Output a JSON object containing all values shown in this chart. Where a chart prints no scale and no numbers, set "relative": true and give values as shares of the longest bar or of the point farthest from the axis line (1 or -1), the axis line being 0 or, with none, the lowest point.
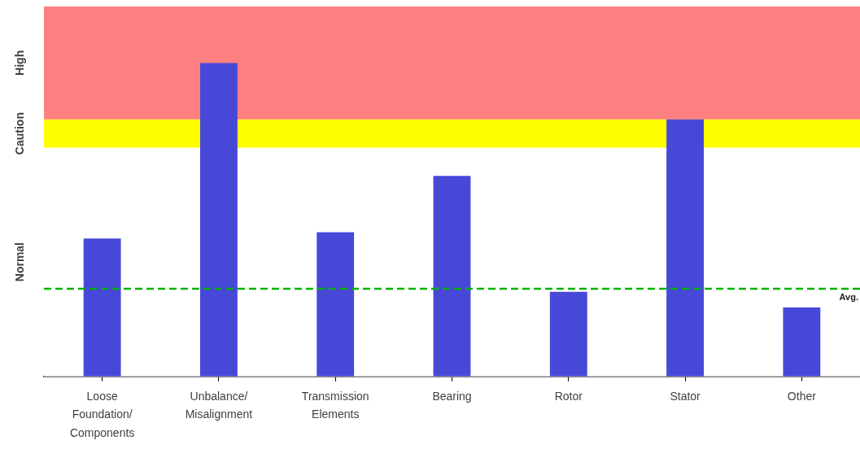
{
  "chart_data": {
    "type": "bar",
    "relative": true,
    "categories": [
      "Loose Foundation/Components",
      "Unbalance/Misalignment",
      "Transmission Elements",
      "Bearing",
      "Rotor",
      "Stator",
      "Other"
    ],
    "values": [
      0.44,
      1,
      0.46,
      0.64,
      0.27,
      0.82,
      0.22
    ],
    "color": "#4848d8",
    "bands": [
      {
        "axis": "y",
        "from": 0,
        "to": 0.73,
        "label": "Normal",
        "color": "#ffffff"
      },
      {
        "axis": "y",
        "from": 0.73,
        "to": 0.82,
        "label": "Caution",
        "color": "#ffff00"
      },
      {
        "axis": "y",
        "from": 0.82,
        "to": 1.18,
        "label": "High",
        "color": "#ff8080"
      }
    ],
    "ref_lines": [
      {
        "axis": "y",
        "value": 0.28,
        "label": "Avg.",
        "color": "#00b000",
        "line_style": "dashed"
      }
    ]
  }
}
